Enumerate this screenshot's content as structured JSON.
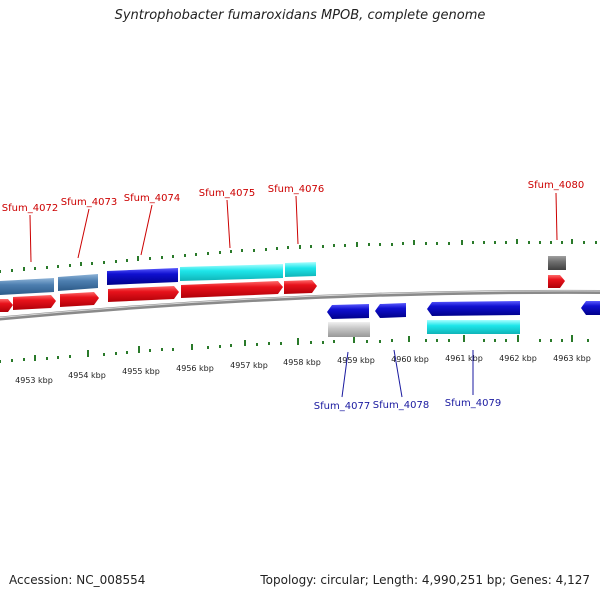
{
  "title": "Syntrophobacter fumaroxidans MPOB, complete genome",
  "footer": {
    "accession": "Accession: NC_008554",
    "topology": "Topology: circular; Length: 4,990,251 bp; Genes: 4,127"
  },
  "colors": {
    "forward_cds": "#e8121b",
    "reverse_cds": "#1010d0",
    "steelblue": "#4d7fb0",
    "cyan": "#1ee6ea",
    "gray": "#c8c8c8",
    "darkgray": "#707070",
    "tick": "#2a7a2a",
    "backbone": "#888888",
    "label_red": "#cc0000",
    "label_blue": "#1a1aa0"
  },
  "upper_labels": [
    "Sfum_4072",
    "Sfum_4073",
    "Sfum_4074",
    "Sfum_4075",
    "Sfum_4076",
    "Sfum_4080"
  ],
  "lower_labels": [
    "Sfum_4077",
    "Sfum_4078",
    "Sfum_4079"
  ],
  "kbp_labels": [
    "4953 kbp",
    "4954 kbp",
    "4955 kbp",
    "4956 kbp",
    "4957 kbp",
    "4958 kbp",
    "4959 kbp",
    "4960 kbp",
    "4961 kbp",
    "4962 kbp",
    "4963 kbp"
  ]
}
